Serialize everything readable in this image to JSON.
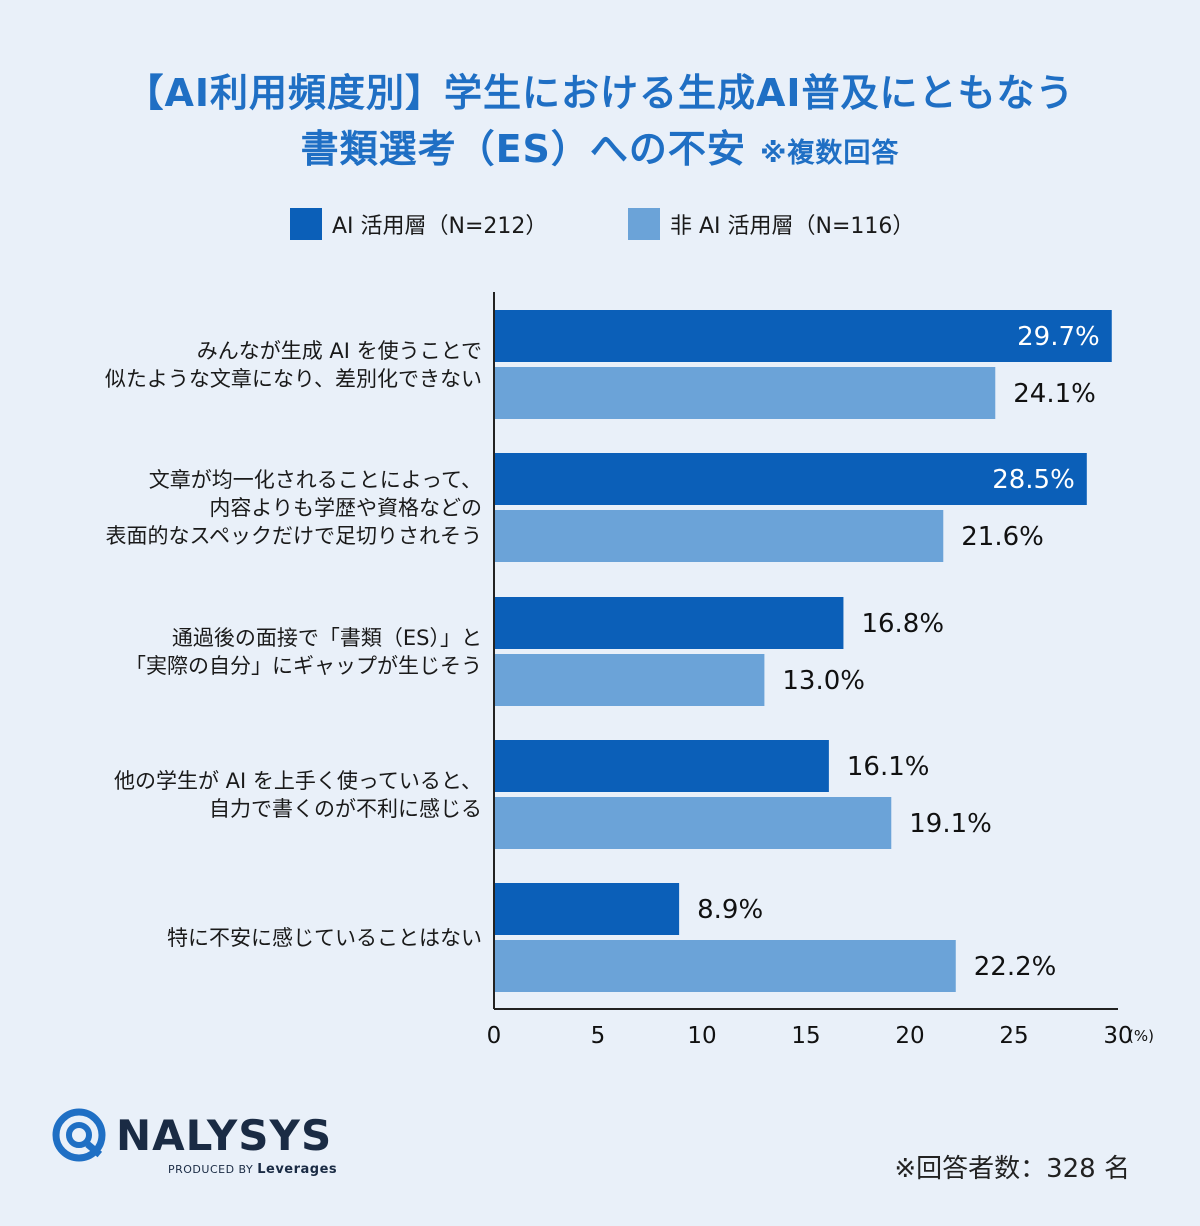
{
  "title_line1": "【AI利用頻度別】学生における生成AI普及にともなう",
  "title_line2": "書類選考（ES）への不安",
  "title_note": "※複数回答",
  "legend": [
    {
      "label": "AI 活用層（N=212）",
      "color": "#0b5fb8"
    },
    {
      "label": "非 AI 活用層（N=116）",
      "color": "#6ba3d8"
    }
  ],
  "chart_data": {
    "type": "bar",
    "orientation": "horizontal",
    "categories": [
      "みんなが生成 AI を使うことで\n似たような文章になり、差別化できない",
      "文章が均一化されることによって、\n内容よりも学歴や資格などの\n表面的なスペックだけで足切りされそう",
      "通過後の面接で「書類（ES）」と\n「実際の自分」にギャップが生じそう",
      "他の学生が AI を上手く使っていると、\n自力で書くのが不利に感じる",
      "特に不安に感じていることはない"
    ],
    "series": [
      {
        "name": "AI 活用層（N=212）",
        "values": [
          29.7,
          28.5,
          16.8,
          16.1,
          8.9
        ],
        "color": "#0b5fb8"
      },
      {
        "name": "非 AI 活用層（N=116）",
        "values": [
          24.1,
          21.6,
          13.0,
          19.1,
          22.2
        ],
        "color": "#6ba3d8"
      }
    ],
    "value_labels": [
      [
        "29.7%",
        "28.5%",
        "16.8%",
        "16.1%",
        "8.9%"
      ],
      [
        "24.1%",
        "21.6%",
        "13.0%",
        "19.1%",
        "22.2%"
      ]
    ],
    "xlim": [
      0,
      30
    ],
    "xticks": [
      0,
      5,
      10,
      15,
      20,
      25,
      30
    ],
    "xunit": "(%)"
  },
  "footer": {
    "logo": "NALYSYS",
    "produced_by": "PRODUCED BY",
    "brand": "Leverages",
    "respondents": "※回答者数：328 名"
  }
}
